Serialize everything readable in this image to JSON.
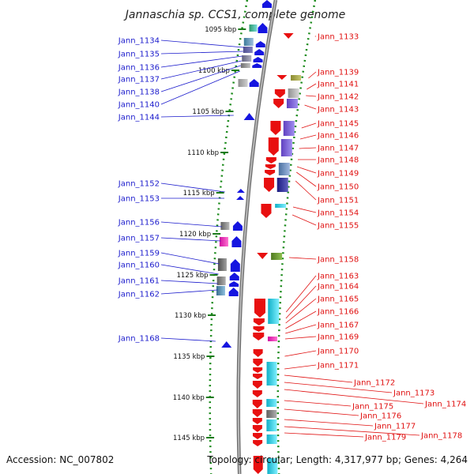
{
  "title": "Jannaschia sp. CCS1, complete genome",
  "footer": {
    "accession": "Accession: NC_007802",
    "summary": "Topology: circular; Length: 4,317,977 bp; Genes: 4,264"
  },
  "colors": {
    "forward_label": "#1a1acc",
    "reverse_label": "#e01010",
    "forward_gene": "#1515e0",
    "reverse_gene": "#e81010",
    "backbone": "#8a8a8a",
    "ruler": "#1a8a1a"
  },
  "kbp_ticks": [
    "1095 kbp",
    "1100 kbp",
    "1105 kbp",
    "1110 kbp",
    "1115 kbp",
    "1120 kbp",
    "1125 kbp",
    "1130 kbp",
    "1135 kbp",
    "1140 kbp",
    "1145 kbp"
  ],
  "forward_genes": [
    "Jann_1134",
    "Jann_1135",
    "Jann_1136",
    "Jann_1137",
    "Jann_1138",
    "Jann_1140",
    "Jann_1144",
    "Jann_1152",
    "Jann_1153",
    "Jann_1156",
    "Jann_1157",
    "Jann_1159",
    "Jann_1160",
    "Jann_1161",
    "Jann_1162",
    "Jann_1168"
  ],
  "reverse_genes": [
    "Jann_1133",
    "Jann_1139",
    "Jann_1141",
    "Jann_1142",
    "Jann_1143",
    "Jann_1145",
    "Jann_1146",
    "Jann_1147",
    "Jann_1148",
    "Jann_1149",
    "Jann_1150",
    "Jann_1151",
    "Jann_1154",
    "Jann_1155",
    "Jann_1158",
    "Jann_1163",
    "Jann_1164",
    "Jann_1165",
    "Jann_1166",
    "Jann_1167",
    "Jann_1169",
    "Jann_1170",
    "Jann_1171",
    "Jann_1172",
    "Jann_1173",
    "Jann_1174",
    "Jann_1175",
    "Jann_1176",
    "Jann_1177",
    "Jann_1178",
    "Jann_1179"
  ]
}
